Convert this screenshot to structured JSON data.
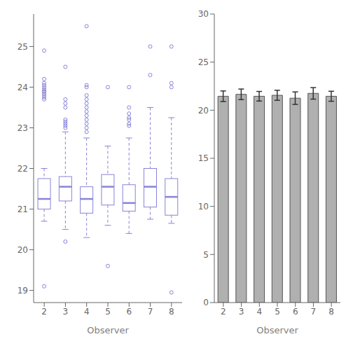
{
  "chart_data": [
    {
      "type": "boxplot",
      "xlabel": "Observer",
      "categories": [
        "2",
        "3",
        "4",
        "5",
        "6",
        "7",
        "8"
      ],
      "median": [
        21.25,
        21.55,
        21.25,
        21.55,
        21.15,
        21.55,
        21.3
      ],
      "q1": [
        21.0,
        21.2,
        20.9,
        21.1,
        20.95,
        21.05,
        20.85
      ],
      "q3": [
        21.75,
        21.8,
        21.55,
        21.85,
        21.6,
        22.0,
        21.75
      ],
      "whisker_low": [
        20.7,
        20.5,
        20.3,
        20.6,
        20.4,
        20.75,
        20.65
      ],
      "whisker_high": [
        22.0,
        22.9,
        22.75,
        22.55,
        22.75,
        23.5,
        23.25
      ],
      "outliers": [
        [
          19.1,
          23.7,
          23.75,
          23.8,
          23.85,
          23.9,
          23.9,
          23.95,
          24.0,
          24.05,
          24.1,
          24.2,
          24.9
        ],
        [
          20.2,
          23.0,
          23.05,
          23.1,
          23.15,
          23.2,
          23.5,
          23.6,
          23.7,
          24.5
        ],
        [
          22.9,
          23.0,
          23.1,
          23.2,
          23.3,
          23.4,
          23.5,
          23.6,
          23.7,
          23.8,
          24.0,
          24.05,
          25.5
        ],
        [
          19.6,
          24.0
        ],
        [
          23.05,
          23.1,
          23.2,
          23.25,
          23.35,
          23.5,
          24.0
        ],
        [
          24.3,
          25.0
        ],
        [
          18.95,
          24.0,
          24.1,
          25.0
        ]
      ],
      "ylim": [
        18.7,
        25.8
      ],
      "yticks": [
        19,
        20,
        21,
        22,
        23,
        24,
        25
      ]
    },
    {
      "type": "bar",
      "xlabel": "Observer",
      "categories": [
        "2",
        "3",
        "4",
        "5",
        "6",
        "7",
        "8"
      ],
      "values": [
        21.45,
        21.65,
        21.45,
        21.55,
        21.25,
        21.75,
        21.45
      ],
      "errors": [
        0.55,
        0.55,
        0.5,
        0.52,
        0.65,
        0.6,
        0.52
      ],
      "color": "#b0b0b0",
      "ylim": [
        0,
        30
      ],
      "yticks": [
        0,
        5,
        10,
        15,
        20,
        25,
        30
      ]
    }
  ]
}
